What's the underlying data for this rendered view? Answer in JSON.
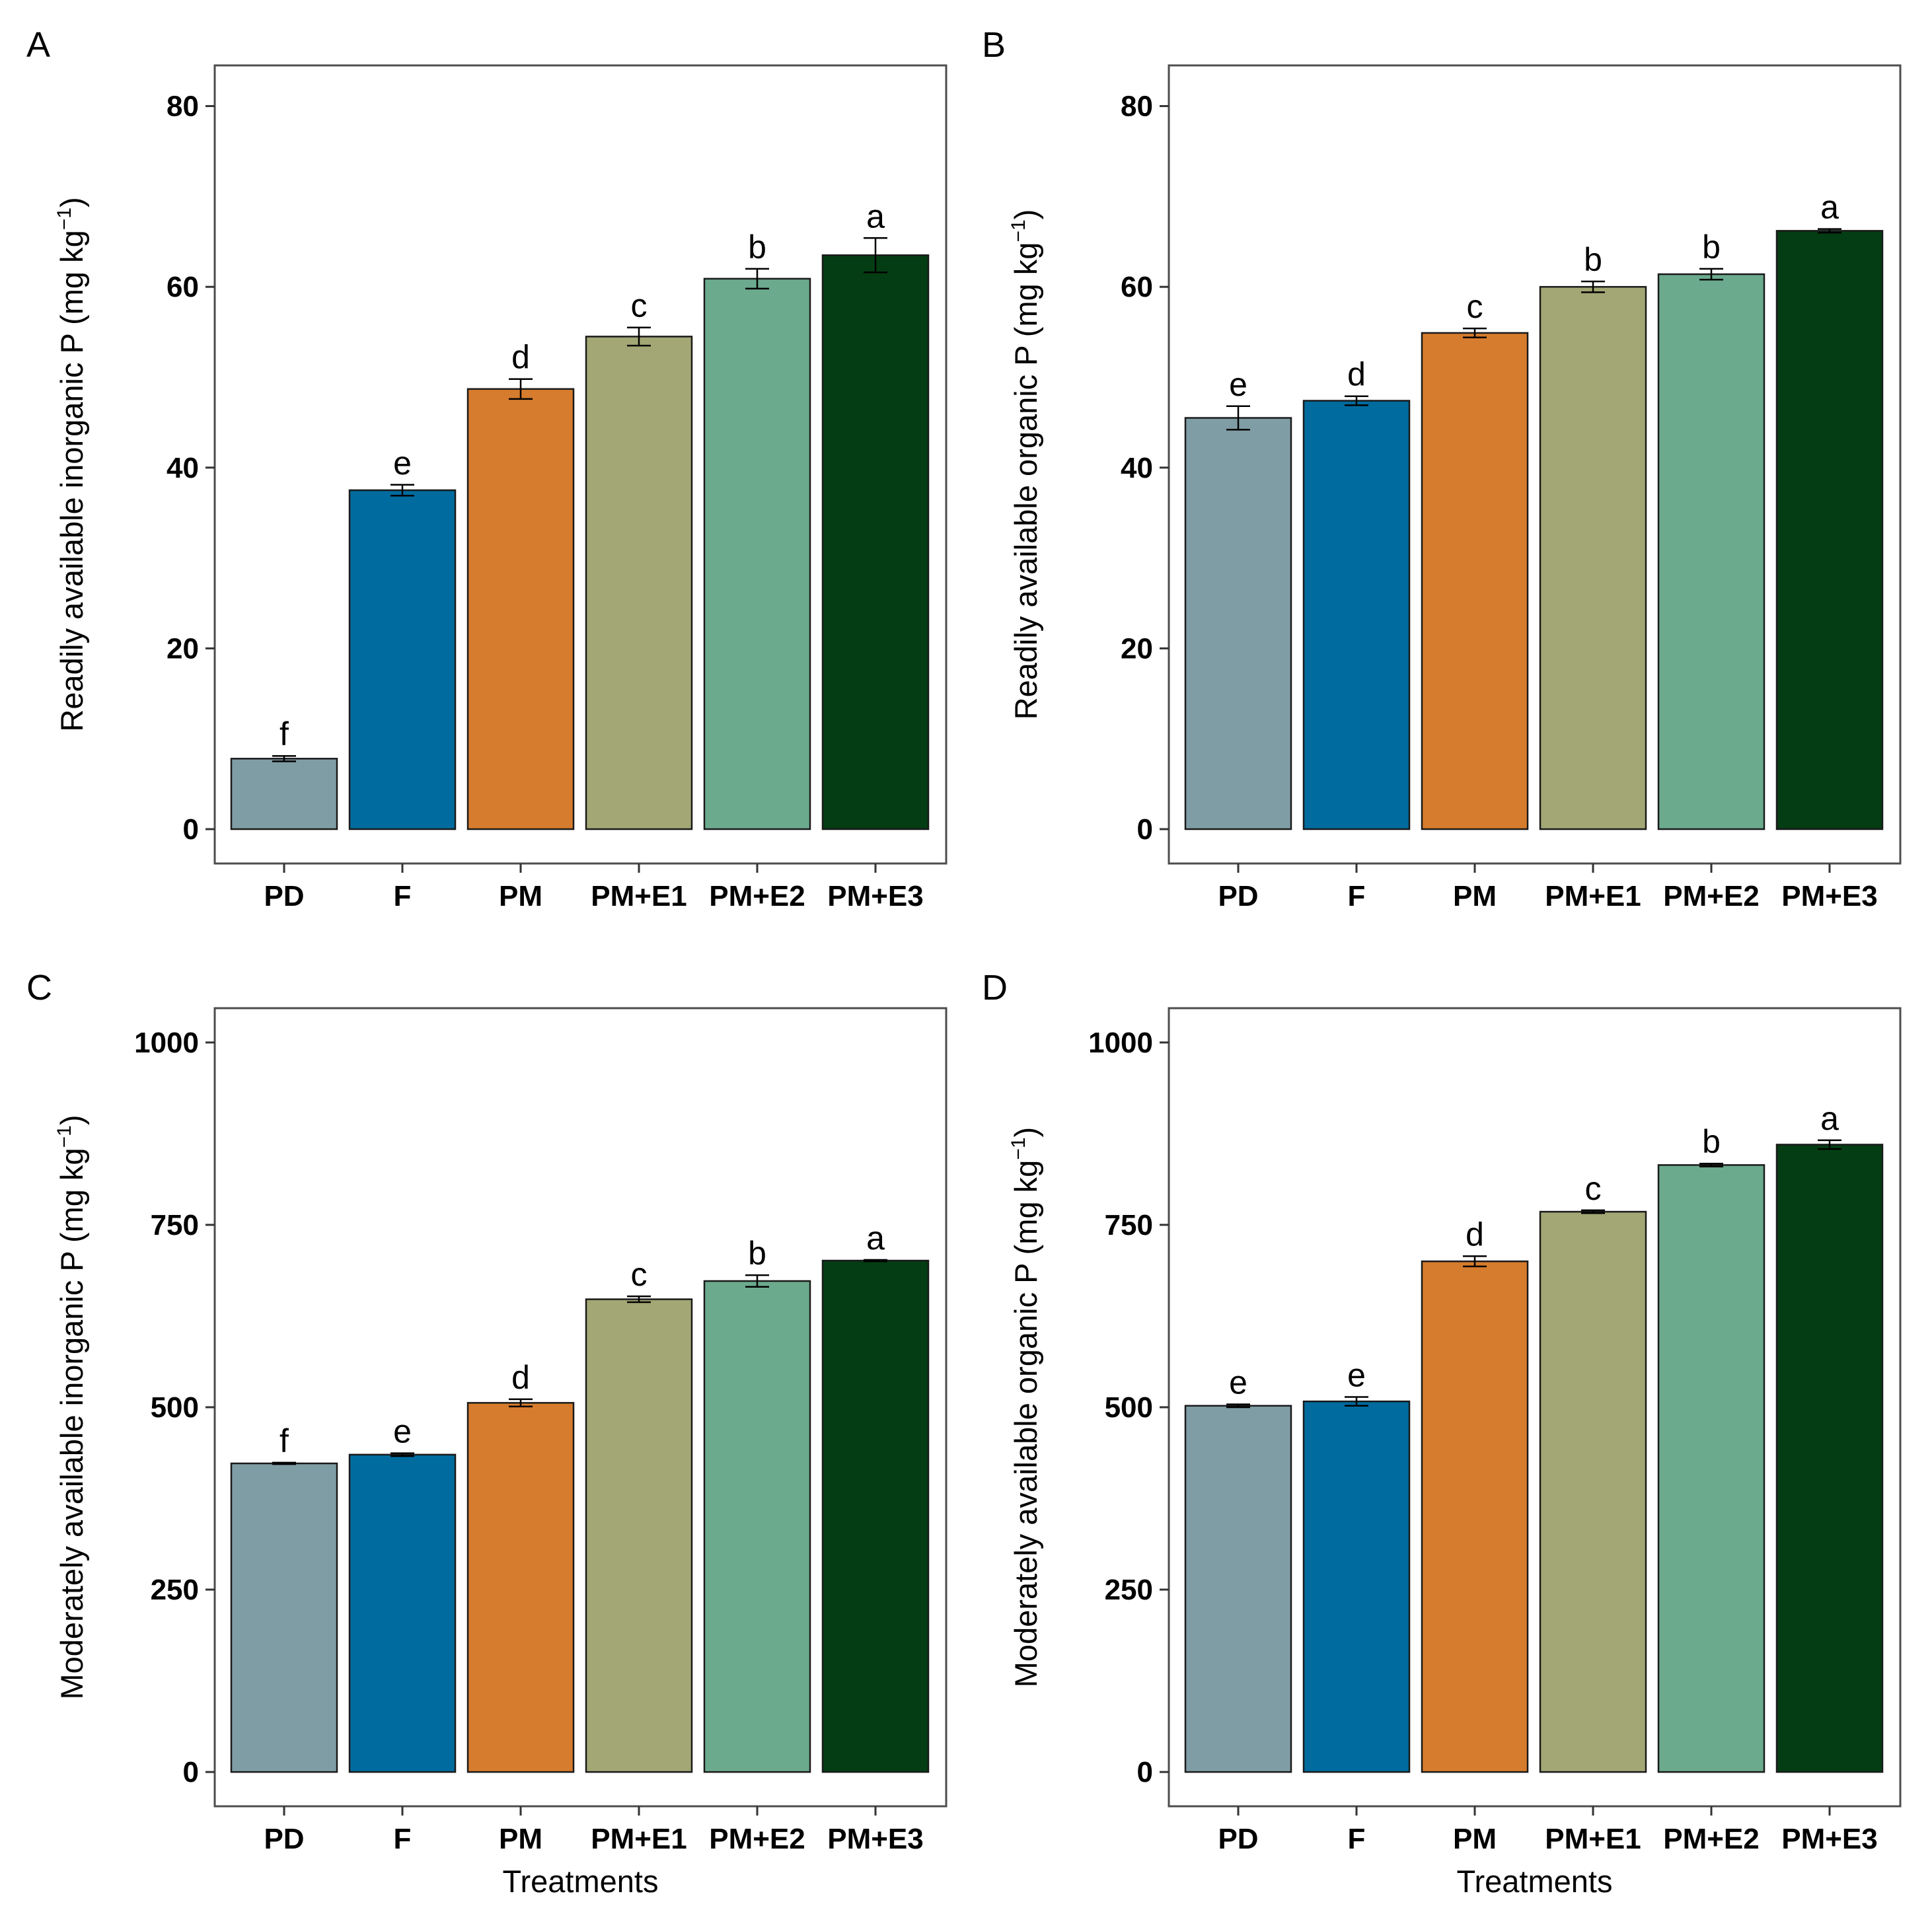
{
  "figure": {
    "x_title": "Treatments",
    "categories": [
      "PD",
      "F",
      "PM",
      "PM+E1",
      "PM+E2",
      "PM+E3"
    ],
    "colors": [
      "#7f9da5",
      "#006b9e",
      "#d67c2e",
      "#a2a775",
      "#6caa8d",
      "#043d13"
    ]
  },
  "chart_data": [
    {
      "type": "bar",
      "panel": "A",
      "title": "",
      "ylabel_main": "Readily available inorganic P",
      "ylabel_unit_open": "(mg kg",
      "ylabel_unit_sup": "−1",
      "ylabel_unit_close": ")",
      "xlabel": "",
      "categories": [
        "PD",
        "F",
        "PM",
        "PM+E1",
        "PM+E2",
        "PM+E3"
      ],
      "values": [
        7.8,
        37.5,
        48.7,
        54.5,
        60.9,
        63.5
      ],
      "errors": [
        0.3,
        0.6,
        1.1,
        1.0,
        1.1,
        1.9
      ],
      "letters": [
        "f",
        "e",
        "d",
        "c",
        "b",
        "a"
      ],
      "ylim": [
        -3.8,
        84.5
      ],
      "yticks": [
        0,
        20,
        40,
        60,
        80
      ]
    },
    {
      "type": "bar",
      "panel": "B",
      "title": "",
      "ylabel_main": "Readily available organic P",
      "ylabel_unit_open": "(mg kg",
      "ylabel_unit_sup": "−1",
      "ylabel_unit_close": ")",
      "xlabel": "",
      "categories": [
        "PD",
        "F",
        "PM",
        "PM+E1",
        "PM+E2",
        "PM+E3"
      ],
      "values": [
        45.5,
        47.4,
        54.9,
        60.0,
        61.4,
        66.2
      ],
      "errors": [
        1.3,
        0.5,
        0.5,
        0.6,
        0.6,
        0.2
      ],
      "letters": [
        "e",
        "d",
        "c",
        "b",
        "b",
        "a"
      ],
      "ylim": [
        -3.8,
        84.5
      ],
      "yticks": [
        0,
        20,
        40,
        60,
        80
      ]
    },
    {
      "type": "bar",
      "panel": "C",
      "title": "",
      "ylabel_main": "Moderately available inorganic P",
      "ylabel_unit_open": "(mg kg",
      "ylabel_unit_sup": "−1",
      "ylabel_unit_close": ")",
      "xlabel": "Treatments",
      "categories": [
        "PD",
        "F",
        "PM",
        "PM+E1",
        "PM+E2",
        "PM+E3"
      ],
      "values": [
        423,
        435,
        506,
        648,
        673,
        701
      ],
      "errors": [
        1,
        2,
        5,
        4,
        8,
        1
      ],
      "letters": [
        "f",
        "e",
        "d",
        "c",
        "b",
        "a"
      ],
      "ylim": [
        -47,
        1047
      ],
      "yticks": [
        0,
        250,
        500,
        750,
        1000
      ]
    },
    {
      "type": "bar",
      "panel": "D",
      "title": "",
      "ylabel_main": "Moderately available organic P",
      "ylabel_unit_open": "(mg kg",
      "ylabel_unit_sup": "−1",
      "ylabel_unit_close": ")",
      "xlabel": "Treatments",
      "categories": [
        "PD",
        "F",
        "PM",
        "PM+E1",
        "PM+E2",
        "PM+E3"
      ],
      "values": [
        502,
        508,
        700,
        768,
        832,
        860
      ],
      "errors": [
        2,
        6,
        7,
        2,
        2,
        6
      ],
      "letters": [
        "e",
        "e",
        "d",
        "c",
        "b",
        "a"
      ],
      "ylim": [
        -47,
        1047
      ],
      "yticks": [
        0,
        250,
        500,
        750,
        1000
      ]
    }
  ]
}
